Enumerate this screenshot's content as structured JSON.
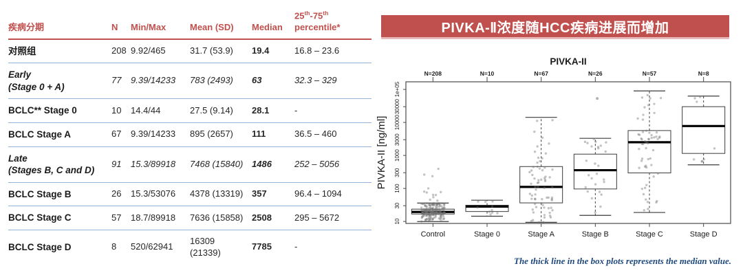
{
  "colors": {
    "accent_red": "#c0504d",
    "separator_blue": "#95b3d7",
    "footnote_blue": "#1f497d",
    "banner_text": "#ffffff"
  },
  "banner": {
    "title": "PIVKA-Ⅱ浓度随HCC疾病进展而增加"
  },
  "table": {
    "headers": {
      "stage": "疾病分期",
      "n": "N",
      "minmax": "Min/Max",
      "mean": "Mean (SD)",
      "median": "Median",
      "pct_a": "25",
      "pct_sup1": "th",
      "pct_b": "-75",
      "pct_sup2": "th",
      "pct_c": "percentile*"
    },
    "rows": [
      {
        "stage1": "对照组",
        "stage2": "",
        "n": "208",
        "minmax": "9.92/465",
        "mean": "31.7 (53.9)",
        "median": "19.4",
        "pct": "16.8 – 23.6",
        "italic": false
      },
      {
        "stage1": "Early",
        "stage2": "(Stage 0 + A)",
        "n": "77",
        "minmax": "9.39/14233",
        "mean": "783 (2493)",
        "median": "63",
        "pct": "32.3 – 329",
        "italic": true
      },
      {
        "stage1": "BCLC** Stage 0",
        "stage2": "",
        "n": "10",
        "minmax": "14.4/44",
        "mean": "27.5 (9.14)",
        "median": "28.1",
        "pct": "-",
        "italic": false
      },
      {
        "stage1": "BCLC Stage A",
        "stage2": "",
        "n": "67",
        "minmax": "9.39/14233",
        "mean": "895 (2657)",
        "median": "111",
        "pct": "36.5 – 460",
        "italic": false
      },
      {
        "stage1": "Late",
        "stage2": "(Stages B, C and D)",
        "n": "91",
        "minmax": "15.3/89918",
        "mean": "7468 (15840)",
        "median": "1486",
        "pct": "252 – 5056",
        "italic": true
      },
      {
        "stage1": "BCLC Stage B",
        "stage2": "",
        "n": "26",
        "minmax": "15.3/53076",
        "mean": "4378 (13319)",
        "median": "357",
        "pct": "96.4 – 1094",
        "italic": false
      },
      {
        "stage1": "BCLC Stage C",
        "stage2": "",
        "n": "57",
        "minmax": "18.7/89918",
        "mean": "7636 (15858)",
        "median": "2508",
        "pct": "295 – 5672",
        "italic": false
      },
      {
        "stage1": "BCLC Stage D",
        "stage2": "",
        "n": "8",
        "minmax": "520/62941",
        "mean": "16309 (21339)",
        "median": "7785",
        "pct": "-",
        "italic": false
      }
    ]
  },
  "chart_data": {
    "type": "box",
    "title": "PIVKA-II",
    "ylabel": "PIVKA-II [ng/ml]",
    "log_scale": true,
    "ylim": [
      8.7,
      170000
    ],
    "yticks": [
      10,
      30,
      100,
      300,
      1000,
      3000,
      10000,
      30000,
      100000
    ],
    "ytick_labels": [
      "10",
      "30",
      "100",
      "300",
      "1000",
      "3000",
      "10000",
      "30000",
      "1e+05"
    ],
    "categories": [
      "Control",
      "Stage 0",
      "Stage A",
      "Stage B",
      "Stage C",
      "Stage D"
    ],
    "n_labels": [
      "N=208",
      "N=10",
      "N=67",
      "N=26",
      "N=57",
      "N=8"
    ],
    "groups": [
      {
        "label": "Control",
        "n": 208,
        "lo": 9.92,
        "q1": 16.8,
        "median": 19.4,
        "q3": 23.6,
        "hi": 36,
        "points_max": 465,
        "outliers": []
      },
      {
        "label": "Stage 0",
        "n": 10,
        "lo": 14.4,
        "q1": 20,
        "median": 28.1,
        "q3": 31,
        "hi": 44,
        "outliers": []
      },
      {
        "label": "Stage A",
        "n": 67,
        "lo": 9.39,
        "q1": 36.5,
        "median": 111,
        "q3": 460,
        "hi": 14233,
        "outliers": []
      },
      {
        "label": "Stage B",
        "n": 26,
        "lo": 15.3,
        "q1": 96.4,
        "median": 357,
        "q3": 1094,
        "hi": 3300,
        "outliers": [
          53076
        ]
      },
      {
        "label": "Stage C",
        "n": 57,
        "lo": 18.7,
        "q1": 295,
        "median": 2508,
        "q3": 5672,
        "hi": 89918,
        "outliers": []
      },
      {
        "label": "Stage D",
        "n": 8,
        "lo": 520,
        "q1": 1150,
        "median": 7785,
        "q3": 30000,
        "hi": 62941,
        "outliers": []
      }
    ],
    "footnote": "The thick line in the box plots represents the median value."
  }
}
